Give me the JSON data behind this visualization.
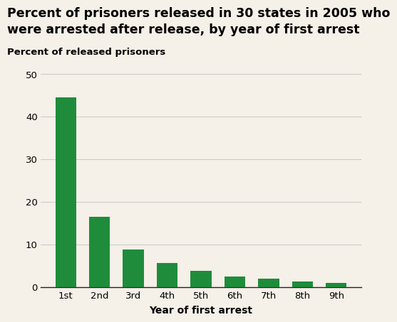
{
  "title_line1": "Percent of prisoners released in 30 states in 2005 who",
  "title_line2": "were arrested after release, by year of first arrest",
  "ylabel": "Percent of released prisoners",
  "xlabel": "Year of first arrest",
  "categories": [
    "1st",
    "2nd",
    "3rd",
    "4th",
    "5th",
    "6th",
    "7th",
    "8th",
    "9th"
  ],
  "values": [
    44.5,
    16.5,
    8.7,
    5.6,
    3.8,
    2.5,
    1.9,
    1.3,
    1.0
  ],
  "bar_color": "#1f8c3b",
  "ylim": [
    0,
    50
  ],
  "yticks": [
    0,
    10,
    20,
    30,
    40,
    50
  ],
  "background_color": "#f5f0e8",
  "title_fontsize": 12.5,
  "ylabel_fontsize": 9.5,
  "xlabel_fontsize": 10,
  "tick_fontsize": 9.5,
  "grid_color": "#c8c8c8"
}
